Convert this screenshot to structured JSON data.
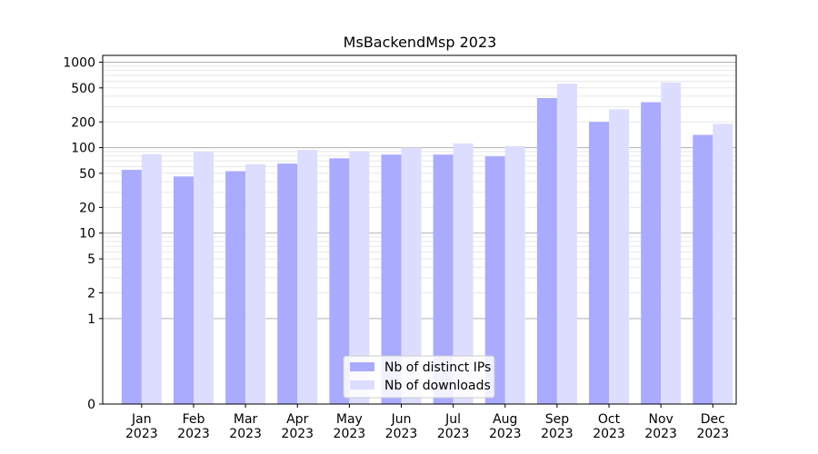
{
  "chart_data": {
    "type": "bar",
    "title": "MsBackendMsp 2023",
    "xlabel": "",
    "ylabel": "",
    "yscale": "symlog",
    "ylim": [
      0,
      1200
    ],
    "y_ticks": [
      0,
      1,
      2,
      5,
      10,
      20,
      50,
      100,
      200,
      500,
      1000
    ],
    "categories": [
      "Jan\n2023",
      "Feb\n2023",
      "Mar\n2023",
      "Apr\n2023",
      "May\n2023",
      "Jun\n2023",
      "Jul\n2023",
      "Aug\n2023",
      "Sep\n2023",
      "Oct\n2023",
      "Nov\n2023",
      "Dec\n2023"
    ],
    "series": [
      {
        "name": "Nb of distinct IPs",
        "color": "#aaaaff",
        "values": [
          55,
          46,
          53,
          65,
          75,
          83,
          83,
          79,
          380,
          200,
          340,
          141
        ]
      },
      {
        "name": "Nb of downloads",
        "color": "#ddddff",
        "values": [
          84,
          90,
          64,
          94,
          91,
          100,
          112,
          104,
          560,
          280,
          580,
          190
        ]
      }
    ],
    "grid": "horizontal",
    "legend_position": "bottom-center"
  }
}
